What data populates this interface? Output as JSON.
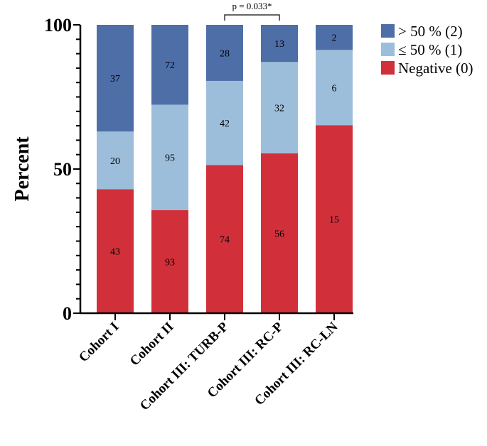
{
  "chart_data": {
    "type": "bar",
    "stacked": true,
    "title": "",
    "xlabel": "",
    "ylabel": "Percent",
    "ylim": [
      0,
      100
    ],
    "yticks": [
      "0",
      "50",
      "100"
    ],
    "minor_tick_step": 5,
    "grid": false,
    "legend_position": "top-right",
    "categories": [
      "Cohort I",
      "Cohort II",
      "Cohort III: TURB-P",
      "Cohort III: RC-P",
      "Cohort III: RC-LN"
    ],
    "series": [
      {
        "name": "Negative (0)",
        "color": "#d1303a",
        "counts": [
          43,
          93,
          74,
          56,
          15
        ]
      },
      {
        "name": "≤ 50 % (1)",
        "color": "#9dbedb",
        "counts": [
          20,
          95,
          42,
          32,
          6
        ]
      },
      {
        "name": "> 50 % (2)",
        "color": "#4e6ea8",
        "counts": [
          37,
          72,
          28,
          13,
          2
        ]
      }
    ],
    "legend_order": [
      2,
      1,
      0
    ],
    "annotations": [
      {
        "text": "p = 0.033*",
        "between": [
          "Cohort III: TURB-P",
          "Cohort III: RC-P"
        ]
      }
    ]
  }
}
